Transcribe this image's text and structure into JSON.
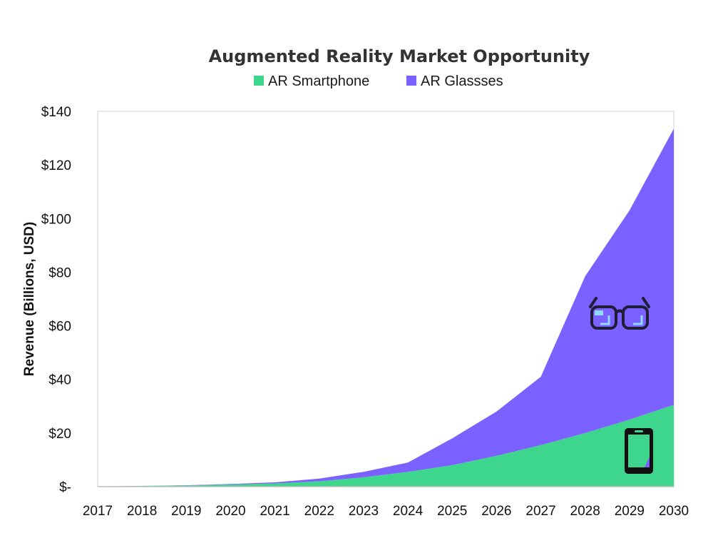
{
  "chart_data": {
    "type": "area",
    "stacked": true,
    "title": "Augmented Reality Market Opportunity",
    "xlabel": "",
    "ylabel": "Revenue (Billions, USD)",
    "x": [
      "2017",
      "2018",
      "2019",
      "2020",
      "2021",
      "2022",
      "2023",
      "2024",
      "2025",
      "2026",
      "2027",
      "2028",
      "2029",
      "2030"
    ],
    "series": [
      {
        "name": "AR Smartphone",
        "color": "#3dd68c",
        "values": [
          0.1,
          0.3,
          0.4,
          0.8,
          1.2,
          2.0,
          3.5,
          5.5,
          8.0,
          11.5,
          15.5,
          20.0,
          25.0,
          30.5
        ]
      },
      {
        "name": "AR Glassses",
        "color": "#7b61ff",
        "values": [
          0.0,
          0.0,
          0.1,
          0.2,
          0.4,
          1.0,
          2.0,
          3.5,
          10.0,
          16.5,
          25.5,
          58.5,
          78.0,
          103.0
        ]
      }
    ],
    "ylim": [
      0,
      140
    ],
    "yticks": [
      0,
      20,
      40,
      60,
      80,
      100,
      120,
      140
    ],
    "ytick_labels": [
      "$-",
      "$20",
      "$40",
      "$60",
      "$80",
      "$100",
      "$120",
      "$140"
    ],
    "grid": false,
    "legend_position": "top",
    "icons": [
      "glasses-icon",
      "smartphone-icon"
    ]
  }
}
